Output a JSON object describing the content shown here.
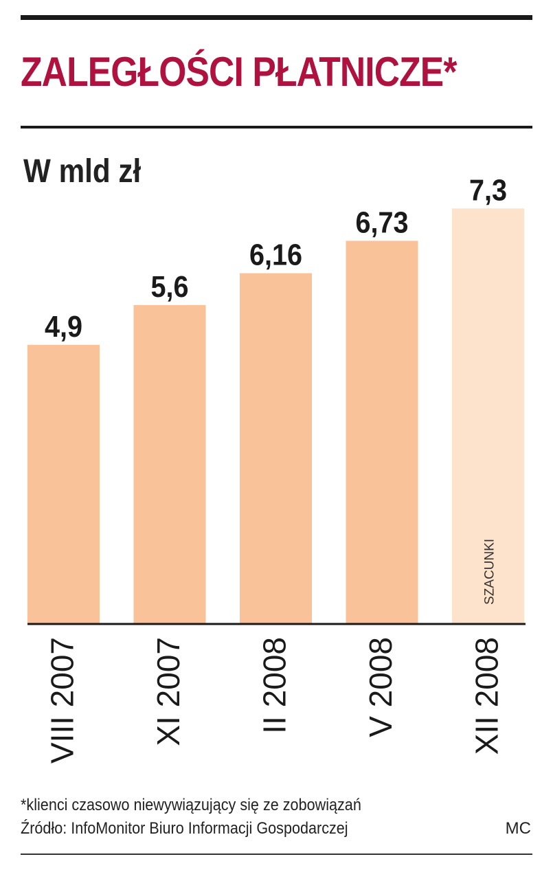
{
  "title": "ZALEGŁOŚCI PŁATNICZE*",
  "unit_label": "W mld zł",
  "footnote": "*klienci czasowo niewywiązujący się ze zobowiązań",
  "source": "Źródło: InfoMonitor Biuro Informacji Gospodarczej",
  "credit": "MC",
  "colors": {
    "title": "#b0123f",
    "bar": "#f9c299",
    "bar_estimate": "#fde3cc",
    "rule": "#1a1a1a"
  },
  "chart_data": {
    "type": "bar",
    "categories": [
      "VIII 2007",
      "XI 2007",
      "II 2008",
      "V 2008",
      "XII 2008"
    ],
    "values": [
      4.9,
      5.6,
      6.16,
      6.73,
      7.3
    ],
    "value_labels": [
      "4,9",
      "5,6",
      "6,16",
      "6,73",
      "7,3"
    ],
    "estimated": [
      false,
      false,
      false,
      false,
      true
    ],
    "estimate_label": "SZACUNKI",
    "title": "ZALEGŁOŚCI PŁATNICZE*",
    "ylabel": "W mld zł",
    "xlabel": "",
    "grid": false,
    "legend": "none"
  }
}
